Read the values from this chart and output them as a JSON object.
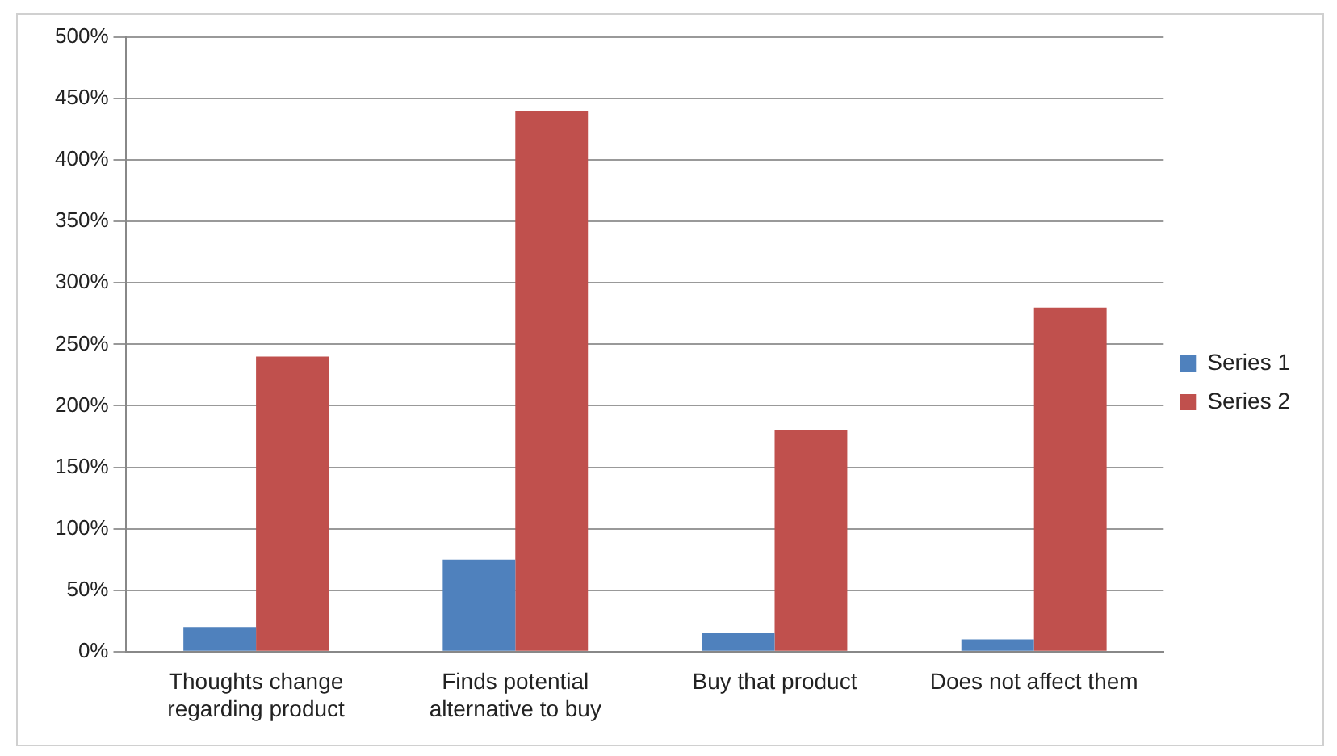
{
  "chart_data": {
    "type": "bar",
    "categories": [
      "Thoughts change regarding product",
      "Finds potential alternative to buy",
      "Buy that product",
      "Does not affect them"
    ],
    "series": [
      {
        "name": "Series 1",
        "color": "#4f81bd",
        "values": [
          20,
          75,
          15,
          10
        ]
      },
      {
        "name": "Series 2",
        "color": "#c0504d",
        "values": [
          240,
          440,
          180,
          280
        ]
      }
    ],
    "ylim": [
      0,
      500
    ],
    "yticks": [
      {
        "value": 0,
        "label": "0%"
      },
      {
        "value": 50,
        "label": "50%"
      },
      {
        "value": 100,
        "label": "100%"
      },
      {
        "value": 150,
        "label": "150%"
      },
      {
        "value": 200,
        "label": "200%"
      },
      {
        "value": 250,
        "label": "250%"
      },
      {
        "value": 300,
        "label": "300%"
      },
      {
        "value": 350,
        "label": "350%"
      },
      {
        "value": 400,
        "label": "400%"
      },
      {
        "value": 450,
        "label": "450%"
      },
      {
        "value": 500,
        "label": "500%"
      }
    ],
    "grid": "y",
    "legend": "right"
  }
}
